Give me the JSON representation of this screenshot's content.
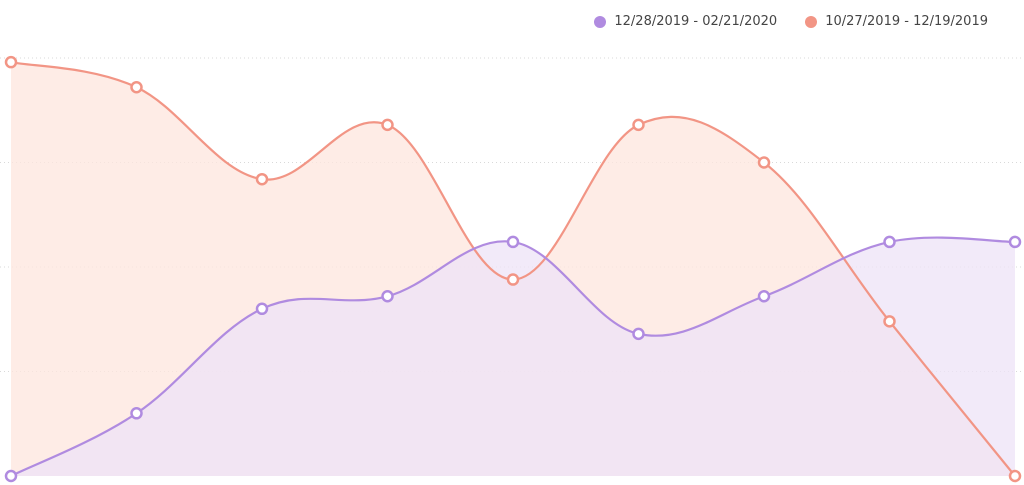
{
  "chart_data": {
    "type": "area",
    "title": "",
    "xlabel": "",
    "ylabel": "",
    "x": [
      1,
      2,
      3,
      4,
      5,
      6,
      7,
      8,
      9
    ],
    "ylim": [
      0,
      100
    ],
    "grid": "horizontal-dotted",
    "legend_position": "top-right",
    "series": [
      {
        "name": "12/28/2019 - 02/21/2020",
        "color": "#b08be0",
        "fill": "#ede3f7",
        "values": [
          0,
          15,
          40,
          43,
          56,
          34,
          43,
          56,
          56
        ]
      },
      {
        "name": "10/27/2019 - 12/19/2019",
        "color": "#f29585",
        "fill": "#fde5de",
        "values": [
          99,
          93,
          71,
          84,
          47,
          84,
          75,
          37,
          0
        ]
      }
    ]
  }
}
